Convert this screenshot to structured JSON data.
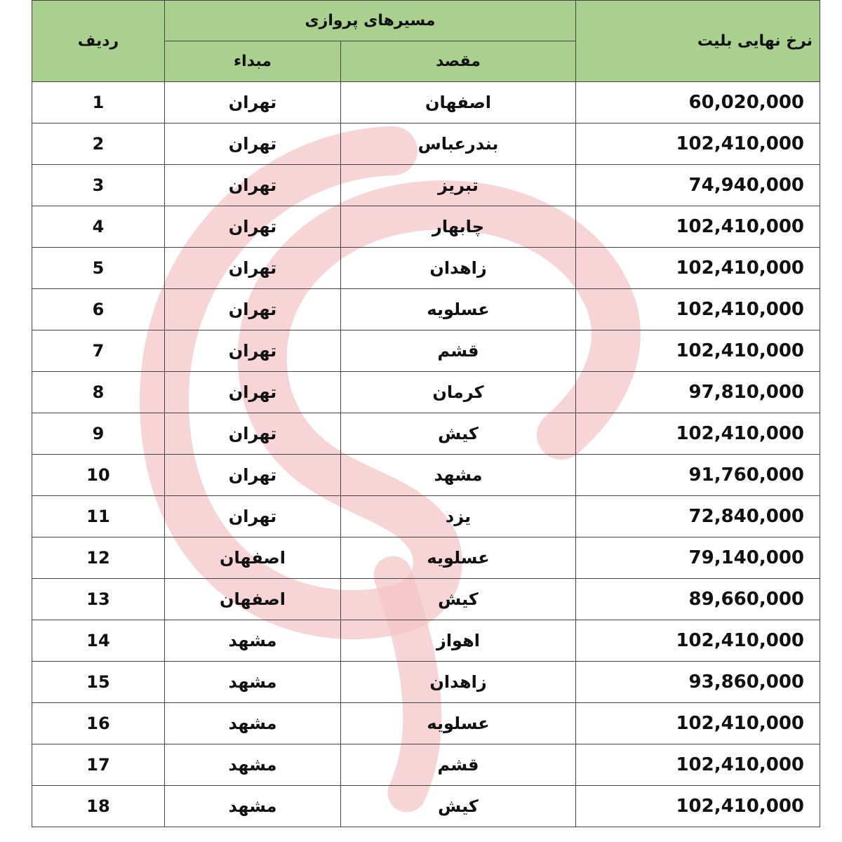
{
  "header": {
    "price": "نرخ نهایی بلیت",
    "routes": "مسیرهای پروازی",
    "destination": "مقصد",
    "origin": "مبداء",
    "row": "ردیف"
  },
  "colors": {
    "header_bg": "#a9d08e",
    "watermark": "#f4c6c8"
  },
  "rows": [
    {
      "price": "60,020,000",
      "destination": "اصفهان",
      "origin": "تهران",
      "row": "1"
    },
    {
      "price": "102,410,000",
      "destination": "بندرعباس",
      "origin": "تهران",
      "row": "2"
    },
    {
      "price": "74,940,000",
      "destination": "تبریز",
      "origin": "تهران",
      "row": "3"
    },
    {
      "price": "102,410,000",
      "destination": "چابهار",
      "origin": "تهران",
      "row": "4"
    },
    {
      "price": "102,410,000",
      "destination": "زاهدان",
      "origin": "تهران",
      "row": "5"
    },
    {
      "price": "102,410,000",
      "destination": "عسلویه",
      "origin": "تهران",
      "row": "6"
    },
    {
      "price": "102,410,000",
      "destination": "قشم",
      "origin": "تهران",
      "row": "7"
    },
    {
      "price": "97,810,000",
      "destination": "کرمان",
      "origin": "تهران",
      "row": "8"
    },
    {
      "price": "102,410,000",
      "destination": "کیش",
      "origin": "تهران",
      "row": "9"
    },
    {
      "price": "91,760,000",
      "destination": "مشهد",
      "origin": "تهران",
      "row": "10"
    },
    {
      "price": "72,840,000",
      "destination": "یزد",
      "origin": "تهران",
      "row": "11"
    },
    {
      "price": "79,140,000",
      "destination": "عسلویه",
      "origin": "اصفهان",
      "row": "12"
    },
    {
      "price": "89,660,000",
      "destination": "کیش",
      "origin": "اصفهان",
      "row": "13"
    },
    {
      "price": "102,410,000",
      "destination": "اهواز",
      "origin": "مشهد",
      "row": "14"
    },
    {
      "price": "93,860,000",
      "destination": "زاهدان",
      "origin": "مشهد",
      "row": "15"
    },
    {
      "price": "102,410,000",
      "destination": "عسلویه",
      "origin": "مشهد",
      "row": "16"
    },
    {
      "price": "102,410,000",
      "destination": "قشم",
      "origin": "مشهد",
      "row": "17"
    },
    {
      "price": "102,410,000",
      "destination": "کیش",
      "origin": "مشهد",
      "row": "18"
    }
  ]
}
